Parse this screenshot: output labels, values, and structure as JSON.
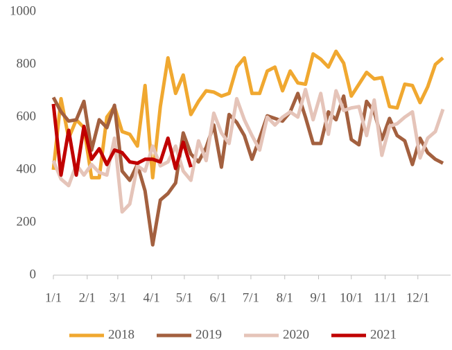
{
  "chart_data": {
    "type": "line",
    "x": [
      0,
      7,
      14,
      21,
      28,
      35,
      42,
      49,
      56,
      63,
      70,
      77,
      84,
      91,
      98,
      105,
      112,
      119,
      126,
      133,
      140,
      147,
      154,
      161,
      168,
      175,
      182,
      189,
      196,
      203,
      210,
      217,
      224,
      231,
      238,
      245,
      252,
      259,
      266,
      273,
      280,
      287,
      294,
      301,
      308,
      315,
      322,
      329,
      336,
      343,
      350,
      357
    ],
    "xlim": [
      0,
      364
    ],
    "xticks": [
      {
        "value": 0,
        "label": "1/1"
      },
      {
        "value": 31,
        "label": "2/1"
      },
      {
        "value": 59,
        "label": "3/1"
      },
      {
        "value": 90,
        "label": "4/1"
      },
      {
        "value": 120,
        "label": "5/1"
      },
      {
        "value": 151,
        "label": "6/1"
      },
      {
        "value": 181,
        "label": "7/1"
      },
      {
        "value": 212,
        "label": "8/1"
      },
      {
        "value": 243,
        "label": "9/1"
      },
      {
        "value": 273,
        "label": "10/1"
      },
      {
        "value": 304,
        "label": "11/1"
      },
      {
        "value": 334,
        "label": "12/1"
      }
    ],
    "ylim": [
      0,
      1000
    ],
    "yticks": [
      0,
      200,
      400,
      600,
      800,
      1000
    ],
    "legend": "bottom",
    "series": [
      {
        "name": "2018",
        "color": "#f0a830",
        "values": [
          400,
          670,
          520,
          590,
          560,
          370,
          370,
          600,
          640,
          545,
          535,
          490,
          720,
          370,
          640,
          825,
          690,
          760,
          610,
          660,
          700,
          695,
          680,
          690,
          790,
          825,
          690,
          690,
          775,
          790,
          700,
          775,
          730,
          725,
          840,
          820,
          790,
          850,
          805,
          680,
          725,
          770,
          745,
          750,
          640,
          635,
          725,
          720,
          655,
          715,
          800,
          825
        ]
      },
      {
        "name": "2019",
        "color": "#a3603f",
        "values": [
          675,
          620,
          585,
          590,
          660,
          475,
          590,
          560,
          645,
          395,
          360,
          420,
          320,
          115,
          285,
          310,
          350,
          540,
          460,
          430,
          485,
          570,
          410,
          610,
          580,
          530,
          440,
          520,
          605,
          595,
          585,
          620,
          690,
          600,
          500,
          500,
          620,
          590,
          680,
          515,
          495,
          660,
          620,
          515,
          595,
          530,
          510,
          420,
          520,
          465,
          440,
          425
        ]
      },
      {
        "name": "2020",
        "color": "#e5c4b9",
        "values": [
          435,
          365,
          340,
          420,
          380,
          420,
          390,
          380,
          520,
          240,
          270,
          415,
          395,
          490,
          415,
          430,
          490,
          395,
          360,
          510,
          435,
          615,
          540,
          500,
          670,
          590,
          530,
          475,
          600,
          570,
          600,
          620,
          600,
          705,
          590,
          690,
          535,
          700,
          625,
          635,
          640,
          530,
          665,
          455,
          565,
          575,
          600,
          620,
          445,
          520,
          545,
          630
        ]
      },
      {
        "name": "2021",
        "color": "#c00000",
        "values": [
          650,
          380,
          550,
          380,
          565,
          440,
          480,
          420,
          475,
          465,
          430,
          425,
          440,
          440,
          430,
          520,
          405,
          505,
          410,
          null,
          null,
          null,
          null,
          null,
          null,
          null,
          null,
          null,
          null,
          null,
          null,
          null,
          null,
          null,
          null,
          null,
          null,
          null,
          null,
          null,
          null,
          null,
          null,
          null,
          null,
          null,
          null,
          null,
          null,
          null,
          null,
          null
        ]
      }
    ]
  }
}
